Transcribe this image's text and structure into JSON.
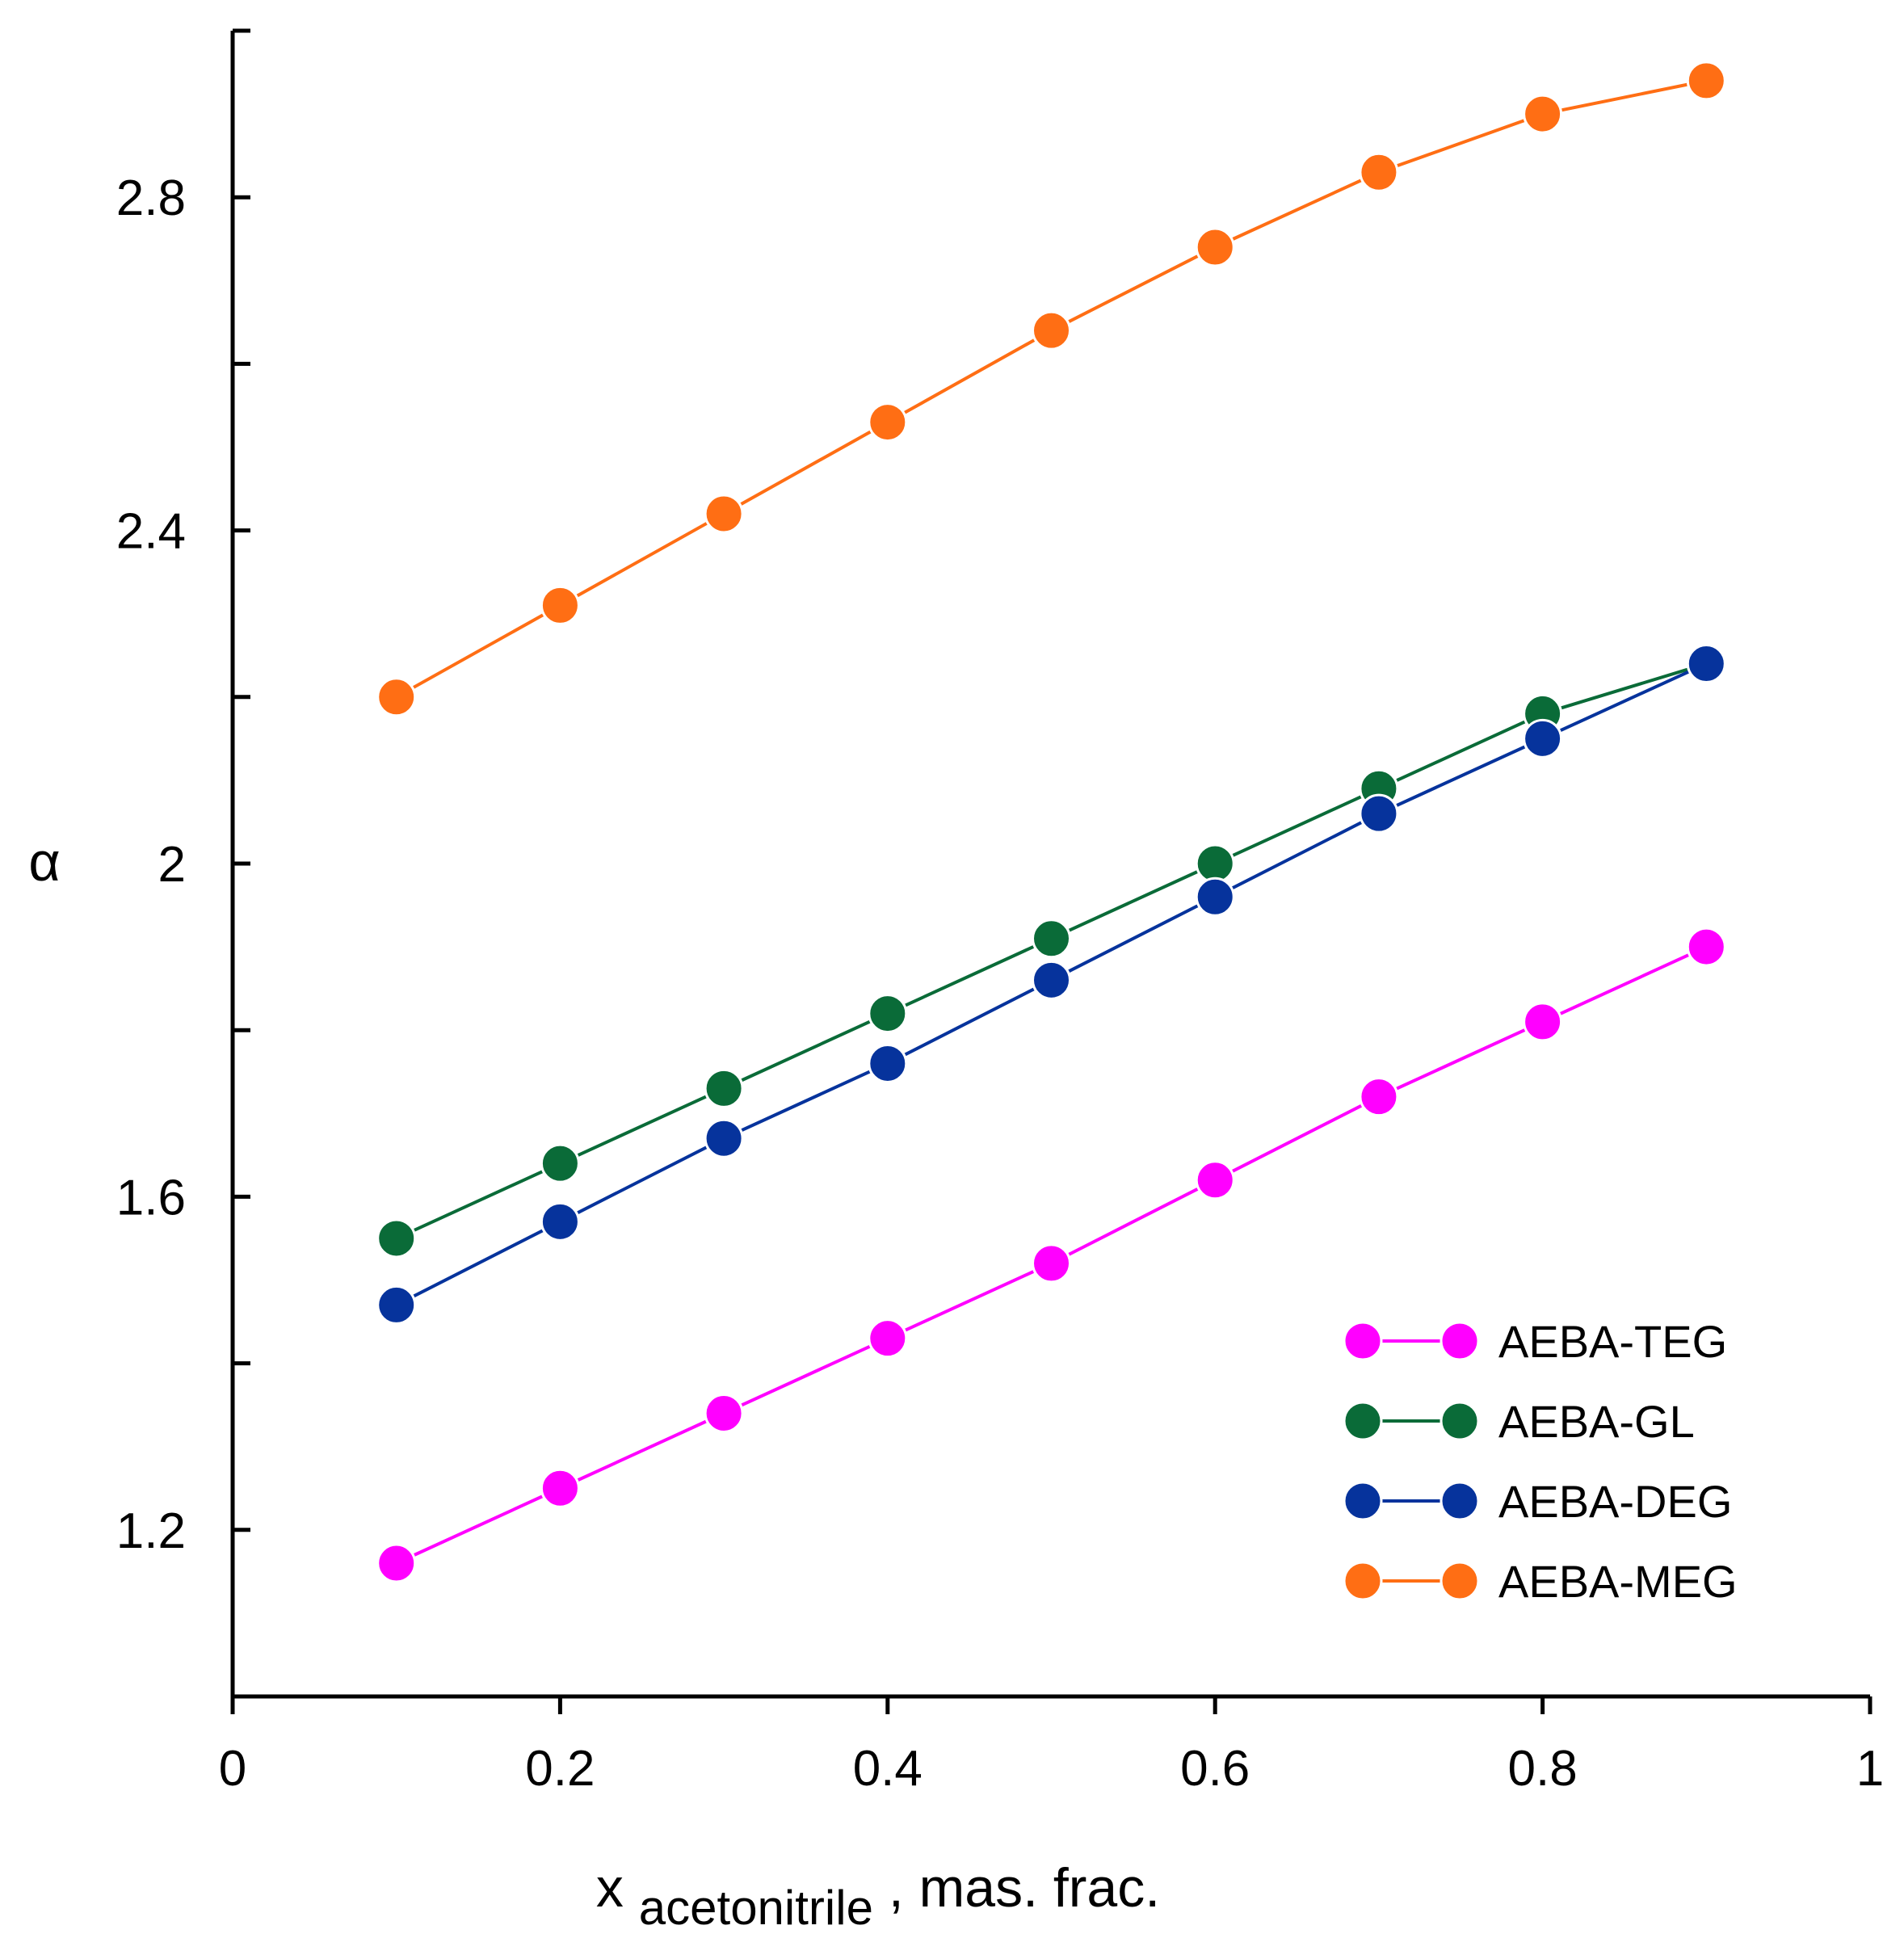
{
  "chart_data": {
    "type": "line",
    "title": "",
    "xlabel": {
      "main": "x",
      "subscript": "acetonitrile",
      "suffix": ", mas. frac."
    },
    "ylabel": "α",
    "xlim": [
      0,
      1
    ],
    "ylim": [
      1.0,
      3.0
    ],
    "x_ticks": [
      0,
      0.2,
      0.4,
      0.6,
      0.8,
      1
    ],
    "x_tick_labels": [
      "0",
      "0.2",
      "0.4",
      "0.6",
      "0.8",
      "1"
    ],
    "y_ticks": [
      1.0,
      1.2,
      1.4,
      1.6,
      1.8,
      2.0,
      2.2,
      2.4,
      2.6,
      2.8,
      3.0
    ],
    "y_tick_labels": [
      {
        "value": 1.2,
        "label": "1.2"
      },
      {
        "value": 1.6,
        "label": "1.6"
      },
      {
        "value": 2.0,
        "label": "2"
      },
      {
        "value": 2.4,
        "label": "2.4"
      },
      {
        "value": 2.8,
        "label": "2.8"
      }
    ],
    "grid": false,
    "legend_position": "bottom-right",
    "x": [
      0.1,
      0.2,
      0.3,
      0.4,
      0.5,
      0.6,
      0.7,
      0.8,
      0.9
    ],
    "series": [
      {
        "name": "AEBA-TEG",
        "color": "#FF00FF",
        "values": [
          1.16,
          1.25,
          1.34,
          1.43,
          1.52,
          1.62,
          1.72,
          1.81,
          1.9
        ]
      },
      {
        "name": "AEBA-GL",
        "color": "#0A6B38",
        "values": [
          1.55,
          1.64,
          1.73,
          1.82,
          1.91,
          2.0,
          2.09,
          2.18,
          2.24
        ]
      },
      {
        "name": "AEBA-DEG",
        "color": "#06339C",
        "values": [
          1.47,
          1.57,
          1.67,
          1.76,
          1.86,
          1.96,
          2.06,
          2.15,
          2.24
        ]
      },
      {
        "name": "AEBA-MEG",
        "color": "#FF6E14",
        "values": [
          2.2,
          2.31,
          2.42,
          2.53,
          2.64,
          2.74,
          2.83,
          2.9,
          2.94
        ]
      }
    ]
  }
}
